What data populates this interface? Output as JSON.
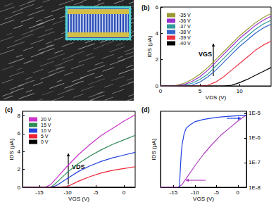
{
  "chart_data": [
    {
      "type": "line",
      "title": "(b)",
      "x_label": "VDS (V)",
      "y_label": "IDS (μA)",
      "annotation": "VGS",
      "x": [
        0,
        1,
        2,
        3,
        4,
        5,
        6,
        7,
        8,
        9,
        10,
        11,
        12,
        13,
        14
      ],
      "series": [
        {
          "name": "-35 V",
          "color": "#999933",
          "values": [
            0,
            0,
            0.05,
            0.2,
            0.5,
            0.9,
            1.4,
            2.0,
            2.6,
            3.2,
            3.8,
            4.3,
            4.8,
            5.2,
            5.5
          ]
        },
        {
          "name": "-36 V",
          "color": "#9933cc",
          "values": [
            0,
            0,
            0.02,
            0.1,
            0.35,
            0.7,
            1.2,
            1.8,
            2.4,
            3.0,
            3.6,
            4.1,
            4.6,
            5.0,
            5.3
          ]
        },
        {
          "name": "-37 V",
          "color": "#339999",
          "values": [
            0,
            0,
            0,
            0.05,
            0.2,
            0.5,
            0.9,
            1.5,
            2.1,
            2.7,
            3.3,
            3.8,
            4.3,
            4.7,
            5.0
          ]
        },
        {
          "name": "-38 V",
          "color": "#3366cc",
          "values": [
            0,
            0,
            0,
            0,
            0.05,
            0.3,
            0.7,
            1.2,
            1.8,
            2.4,
            3.0,
            3.5,
            4.0,
            4.4,
            4.7
          ]
        },
        {
          "name": "-39 V",
          "color": "#ee3344",
          "values": [
            0,
            0,
            0,
            0,
            0,
            0,
            0.05,
            0.3,
            0.7,
            1.2,
            1.7,
            2.2,
            2.7,
            3.1,
            3.4
          ]
        },
        {
          "name": "-40 V",
          "color": "#000000",
          "values": [
            0,
            0,
            0,
            0,
            0,
            0,
            0,
            0,
            0,
            0.05,
            0.25,
            0.5,
            0.8,
            1.1,
            1.4
          ]
        }
      ],
      "xlim": [
        0,
        14
      ],
      "xticks": [
        0,
        5,
        10
      ],
      "ylim": [
        0,
        6
      ],
      "yticks": [
        0,
        2,
        4,
        6
      ],
      "legend": "upper left",
      "grid": false
    },
    {
      "type": "line",
      "title": "(c)",
      "x_label": "VGS (V)",
      "y_label": "IDS (μA)",
      "annotation": "VDS",
      "x": [
        -18,
        -16,
        -14,
        -13,
        -12,
        -10,
        -8,
        -6,
        -4,
        -2,
        0,
        2
      ],
      "series": [
        {
          "name": "20 V",
          "color": "#cc33cc",
          "values": [
            0,
            0,
            0,
            0.3,
            1.0,
            2.4,
            3.7,
            4.8,
            5.8,
            6.6,
            7.4,
            8.1
          ]
        },
        {
          "name": "15 V",
          "color": "#2e8b57",
          "values": [
            0,
            0,
            0,
            0,
            0.5,
            1.7,
            2.7,
            3.5,
            4.2,
            4.8,
            5.3,
            5.8
          ]
        },
        {
          "name": "10 V",
          "color": "#2244dd",
          "values": [
            0,
            0,
            0,
            0,
            0.2,
            1.0,
            1.8,
            2.4,
            2.9,
            3.3,
            3.6,
            3.9
          ]
        },
        {
          "name": "5 V",
          "color": "#ee2233",
          "values": [
            0,
            0,
            0,
            0,
            0,
            0.1,
            0.7,
            1.2,
            1.6,
            1.9,
            2.1,
            2.3
          ]
        },
        {
          "name": "0 V",
          "color": "#000000",
          "values": [
            0,
            0,
            0,
            0,
            0,
            0,
            0,
            0,
            0,
            0,
            0,
            0
          ]
        }
      ],
      "xlim": [
        -18,
        2
      ],
      "xticks": [
        -15,
        -10,
        -5,
        0
      ],
      "ylim": [
        0,
        8.5
      ],
      "yticks": [
        0,
        2,
        4,
        6,
        8
      ],
      "legend": "upper left",
      "grid": false
    },
    {
      "type": "line",
      "title": "(d)",
      "x_label": "VGS (V)",
      "y_label": "IDS (μA)",
      "series": [
        {
          "color": "#b040c0",
          "x": [
            -18,
            -16,
            -14,
            -13,
            -12,
            -10,
            -8,
            -6,
            -4,
            -2,
            0,
            2
          ],
          "values": [
            0,
            0,
            0,
            0.3,
            1.0,
            2.4,
            3.7,
            4.8,
            5.8,
            6.6,
            7.4,
            8.1
          ]
        },
        {
          "color": "#2040e0",
          "axis": "y2",
          "x": [
            -13.6,
            -13.4,
            -13.2,
            -13,
            -12.5,
            -12,
            -11,
            -10,
            -8,
            -6,
            -4,
            -2,
            0,
            2
          ],
          "values": [
            1e-08,
            5e-08,
            2e-07,
            5e-07,
            1.5e-06,
            2.5e-06,
            3.5e-06,
            4.5e-06,
            5.6e-06,
            6.4e-06,
            7e-06,
            7.5e-06,
            7.9e-06,
            8.2e-06
          ]
        }
      ],
      "xlim": [
        -18,
        2
      ],
      "xticks": [
        -15,
        -10,
        -5,
        0
      ],
      "ylim": [
        0,
        8.5
      ],
      "y2lim": [
        1e-08,
        1.2e-05
      ],
      "y2ticks": [
        {
          "value": 1e-08,
          "label": "1E-8"
        },
        {
          "value": 1e-07,
          "label": "1E-7"
        },
        {
          "value": 1e-06,
          "label": "1E-6"
        },
        {
          "value": 1e-05,
          "label": "1E-5"
        }
      ],
      "log": "y",
      "grid": false
    }
  ]
}
